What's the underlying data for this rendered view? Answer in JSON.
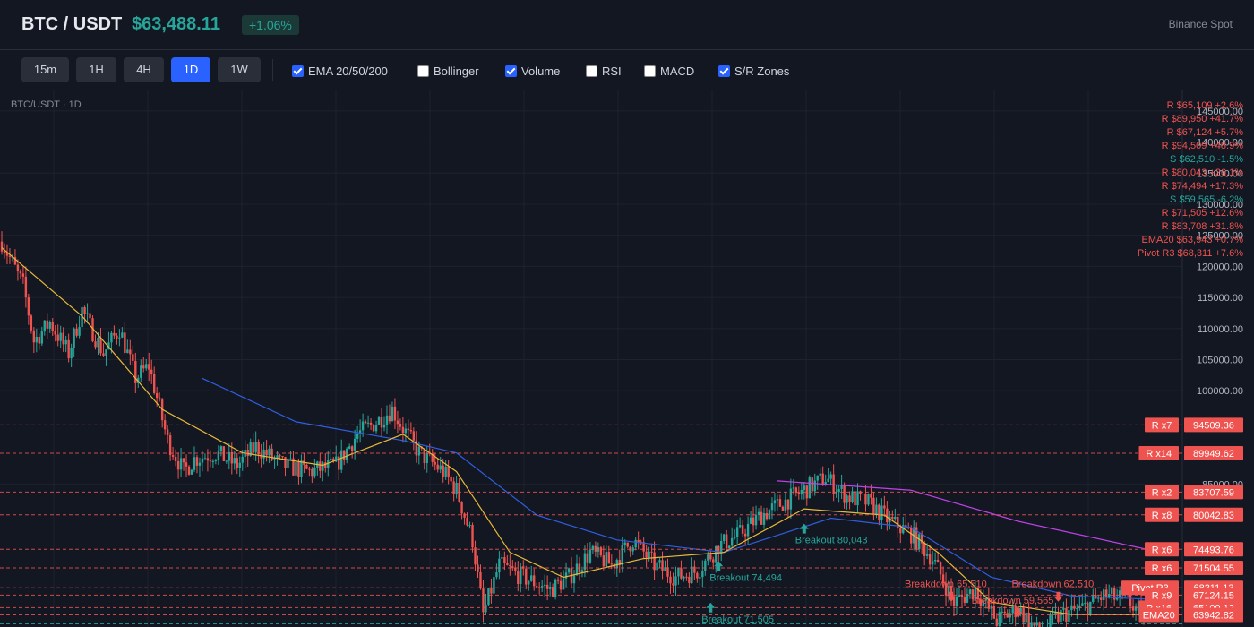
{
  "header": {
    "pair": "BTC / USDT",
    "price": "$63,488.11",
    "change": "+1.06%",
    "exchange": "Binance Spot"
  },
  "toolbar": {
    "timeframes": [
      {
        "label": "15m",
        "active": false
      },
      {
        "label": "1H",
        "active": false
      },
      {
        "label": "4H",
        "active": false
      },
      {
        "label": "1D",
        "active": true
      },
      {
        "label": "1W",
        "active": false
      }
    ],
    "options": [
      {
        "label": "EMA 20/50/200",
        "checked": true
      },
      {
        "label": "Bollinger",
        "checked": false
      },
      {
        "label": "Volume",
        "checked": true
      },
      {
        "label": "RSI",
        "checked": false
      },
      {
        "label": "MACD",
        "checked": false
      },
      {
        "label": "S/R Zones",
        "checked": true
      }
    ]
  },
  "chart_data": {
    "type": "candlestick",
    "title": "BTC/USDT · 1D",
    "y_axis_ticks": [
      "145000.00",
      "140000.00",
      "135000.00",
      "130000.00",
      "125000.00",
      "120000.00",
      "115000.00",
      "110000.00",
      "105000.00",
      "100000.00",
      "85000.00"
    ],
    "ylim": [
      62000,
      147000
    ],
    "legend": [
      {
        "text": "R $65,109 +2.6%",
        "color": "#ef5350"
      },
      {
        "text": "R $89,950 +41.7%",
        "color": "#ef5350"
      },
      {
        "text": "R $67,124 +5.7%",
        "color": "#ef5350"
      },
      {
        "text": "R $94,509 +48.9%",
        "color": "#ef5350"
      },
      {
        "text": "S $62,510 -1.5%",
        "color": "#26a69a"
      },
      {
        "text": "R $80,043 +26.1%",
        "color": "#ef5350"
      },
      {
        "text": "R $74,494 +17.3%",
        "color": "#ef5350"
      },
      {
        "text": "S $59,565 -6.2%",
        "color": "#26a69a"
      },
      {
        "text": "R $71,505 +12.6%",
        "color": "#ef5350"
      },
      {
        "text": "R $83,708 +31.8%",
        "color": "#ef5350"
      },
      {
        "text": "EMA20 $63,943 +0.7%",
        "color": "#ef5350"
      },
      {
        "text": "Pivot R3 $68,311 +7.6%",
        "color": "#ef5350"
      }
    ],
    "levels": [
      {
        "tag": "R x7",
        "price": 94509.36,
        "label": "94509.36",
        "color": "#ef5350"
      },
      {
        "tag": "R x14",
        "price": 89949.62,
        "label": "89949.62",
        "color": "#ef5350"
      },
      {
        "tag": "R x2",
        "price": 83707.59,
        "label": "83707.59",
        "color": "#ef5350"
      },
      {
        "tag": "R x8",
        "price": 80042.83,
        "label": "80042.83",
        "color": "#ef5350"
      },
      {
        "tag": "R x6",
        "price": 74493.76,
        "label": "74493.76",
        "color": "#ef5350"
      },
      {
        "tag": "R x6",
        "price": 71504.55,
        "label": "71504.55",
        "color": "#ef5350"
      },
      {
        "tag": "Pivot R3",
        "price": 68311.13,
        "label": "68311.13",
        "color": "#ef5350"
      },
      {
        "tag": "R x9",
        "price": 67124.15,
        "label": "67124.15",
        "color": "#ef5350"
      },
      {
        "tag": "R x16",
        "price": 65109.12,
        "label": "65109.12",
        "color": "#ef5350"
      },
      {
        "tag": "EMA20",
        "price": 63942.82,
        "label": "63942.82",
        "color": "#ef5350"
      },
      {
        "tag": "",
        "price": 62510.0,
        "label": "",
        "color": "#26a69a"
      }
    ],
    "annotations": [
      {
        "text": "Breakout 80,043",
        "day": 300,
        "price": 79200,
        "type": "up"
      },
      {
        "text": "Breakout 74,494",
        "day": 268,
        "price": 73200,
        "type": "up"
      },
      {
        "text": "Breakout 71,505",
        "day": 265,
        "price": 66500,
        "type": "up"
      },
      {
        "text": "Breakdown 65,510",
        "day": 355,
        "price": 67800,
        "type": "down"
      },
      {
        "text": "Breakdown 62,510",
        "day": 395,
        "price": 67800,
        "type": "down"
      },
      {
        "text": "Breakdown 59,565",
        "day": 380,
        "price": 65200,
        "type": "down"
      }
    ],
    "path": [
      [
        0,
        124000
      ],
      [
        8,
        117000
      ],
      [
        12,
        108000
      ],
      [
        18,
        111000
      ],
      [
        25,
        106000
      ],
      [
        30,
        113000
      ],
      [
        38,
        106000
      ],
      [
        44,
        110000
      ],
      [
        50,
        102000
      ],
      [
        55,
        104000
      ],
      [
        62,
        92000
      ],
      [
        68,
        87000
      ],
      [
        72,
        89000
      ],
      [
        80,
        90000
      ],
      [
        88,
        88000
      ],
      [
        95,
        91000
      ],
      [
        105,
        88000
      ],
      [
        115,
        87000
      ],
      [
        125,
        88000
      ],
      [
        133,
        93000
      ],
      [
        140,
        95000
      ],
      [
        146,
        97000
      ],
      [
        150,
        94000
      ],
      [
        156,
        90000
      ],
      [
        165,
        87000
      ],
      [
        170,
        84000
      ],
      [
        176,
        76000
      ],
      [
        180,
        64000
      ],
      [
        186,
        72000
      ],
      [
        195,
        70000
      ],
      [
        205,
        68000
      ],
      [
        212,
        70000
      ],
      [
        220,
        74000
      ],
      [
        228,
        72000
      ],
      [
        236,
        76000
      ],
      [
        244,
        72000
      ],
      [
        252,
        70000
      ],
      [
        260,
        71000
      ],
      [
        268,
        75000
      ],
      [
        276,
        77000
      ],
      [
        284,
        80000
      ],
      [
        292,
        82000
      ],
      [
        300,
        84000
      ],
      [
        308,
        86000
      ],
      [
        316,
        83000
      ],
      [
        324,
        82000
      ],
      [
        332,
        79000
      ],
      [
        340,
        77000
      ],
      [
        348,
        73000
      ],
      [
        356,
        66000
      ],
      [
        364,
        68000
      ],
      [
        372,
        63000
      ],
      [
        380,
        65000
      ],
      [
        388,
        61000
      ],
      [
        396,
        64000
      ],
      [
        404,
        65000
      ],
      [
        412,
        67000
      ],
      [
        420,
        66500
      ],
      [
        428,
        63488
      ]
    ],
    "ema20_curve": [
      [
        0,
        123000
      ],
      [
        30,
        112000
      ],
      [
        60,
        97000
      ],
      [
        90,
        90000
      ],
      [
        120,
        88000
      ],
      [
        150,
        93000
      ],
      [
        170,
        87000
      ],
      [
        190,
        74000
      ],
      [
        210,
        70000
      ],
      [
        240,
        73000
      ],
      [
        270,
        74000
      ],
      [
        300,
        81000
      ],
      [
        330,
        80000
      ],
      [
        350,
        74000
      ],
      [
        370,
        66000
      ],
      [
        400,
        64000
      ],
      [
        428,
        63943
      ]
    ],
    "ema50_curve": [
      [
        75,
        102000
      ],
      [
        110,
        95000
      ],
      [
        150,
        92000
      ],
      [
        170,
        90000
      ],
      [
        200,
        80000
      ],
      [
        230,
        76000
      ],
      [
        270,
        74000
      ],
      [
        310,
        79500
      ],
      [
        340,
        78000
      ],
      [
        370,
        70000
      ],
      [
        400,
        67000
      ],
      [
        428,
        66500
      ]
    ],
    "ema200_curve": [
      [
        290,
        85500
      ],
      [
        340,
        84000
      ],
      [
        380,
        79000
      ],
      [
        428,
        74500
      ]
    ]
  }
}
